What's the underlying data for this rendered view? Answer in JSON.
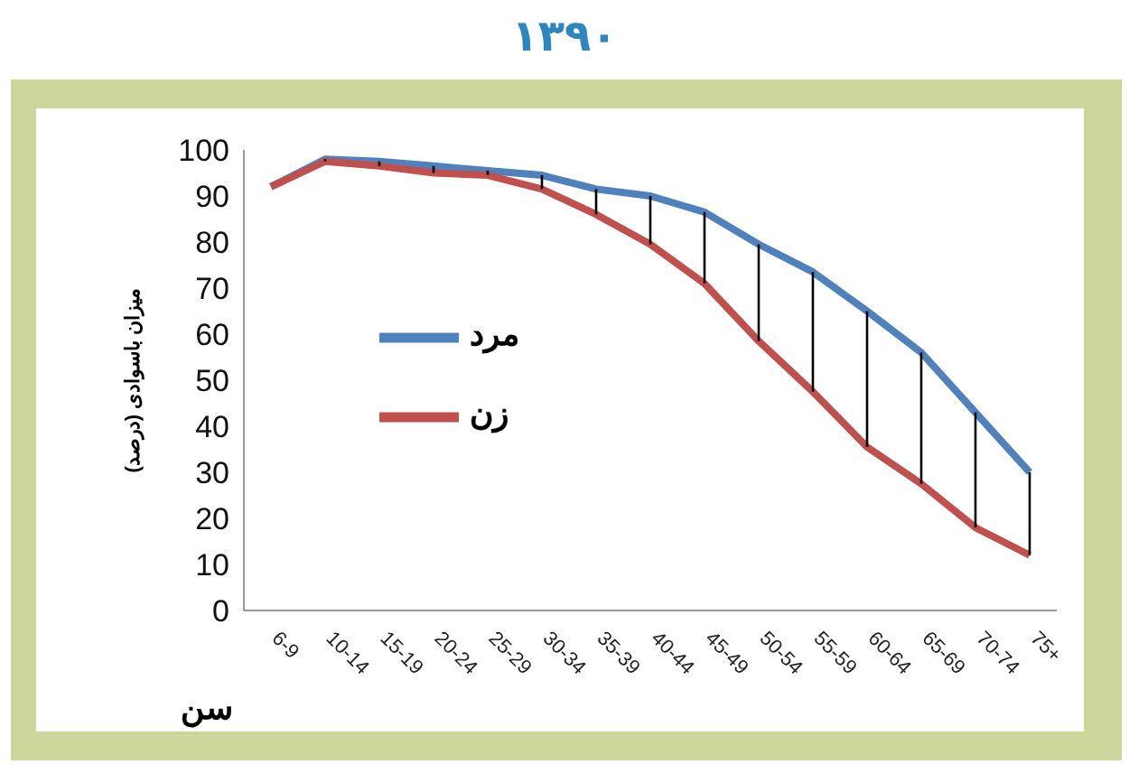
{
  "chart_data": {
    "type": "line",
    "title": "۱۳۹۰",
    "xlabel": "سن",
    "ylabel": "میزان باسوادی (درصد)",
    "categories": [
      "6-9",
      "10-14",
      "15-19",
      "20-24",
      "25-29",
      "30-34",
      "35-39",
      "40-44",
      "45-49",
      "50-54",
      "55-59",
      "60-64",
      "65-69",
      "70-74",
      "75+"
    ],
    "series": [
      {
        "name": "مرد",
        "color": "#4f81bd",
        "values": [
          92,
          98,
          97.5,
          96.5,
          95.5,
          94.5,
          91.5,
          90,
          86.5,
          79.5,
          73.5,
          65,
          56,
          43,
          30
        ]
      },
      {
        "name": "زن",
        "color": "#c0504d",
        "values": [
          92,
          97.5,
          96.5,
          95,
          94.5,
          91.5,
          86,
          79.5,
          71,
          58.5,
          47.5,
          35.5,
          27.5,
          18,
          12
        ]
      }
    ],
    "ylim": [
      0,
      100
    ],
    "yticks": [
      0,
      10,
      20,
      30,
      40,
      50,
      60,
      70,
      80,
      90,
      100
    ],
    "grid": false,
    "legend": "left",
    "marker": "none",
    "line_style": "solid"
  }
}
